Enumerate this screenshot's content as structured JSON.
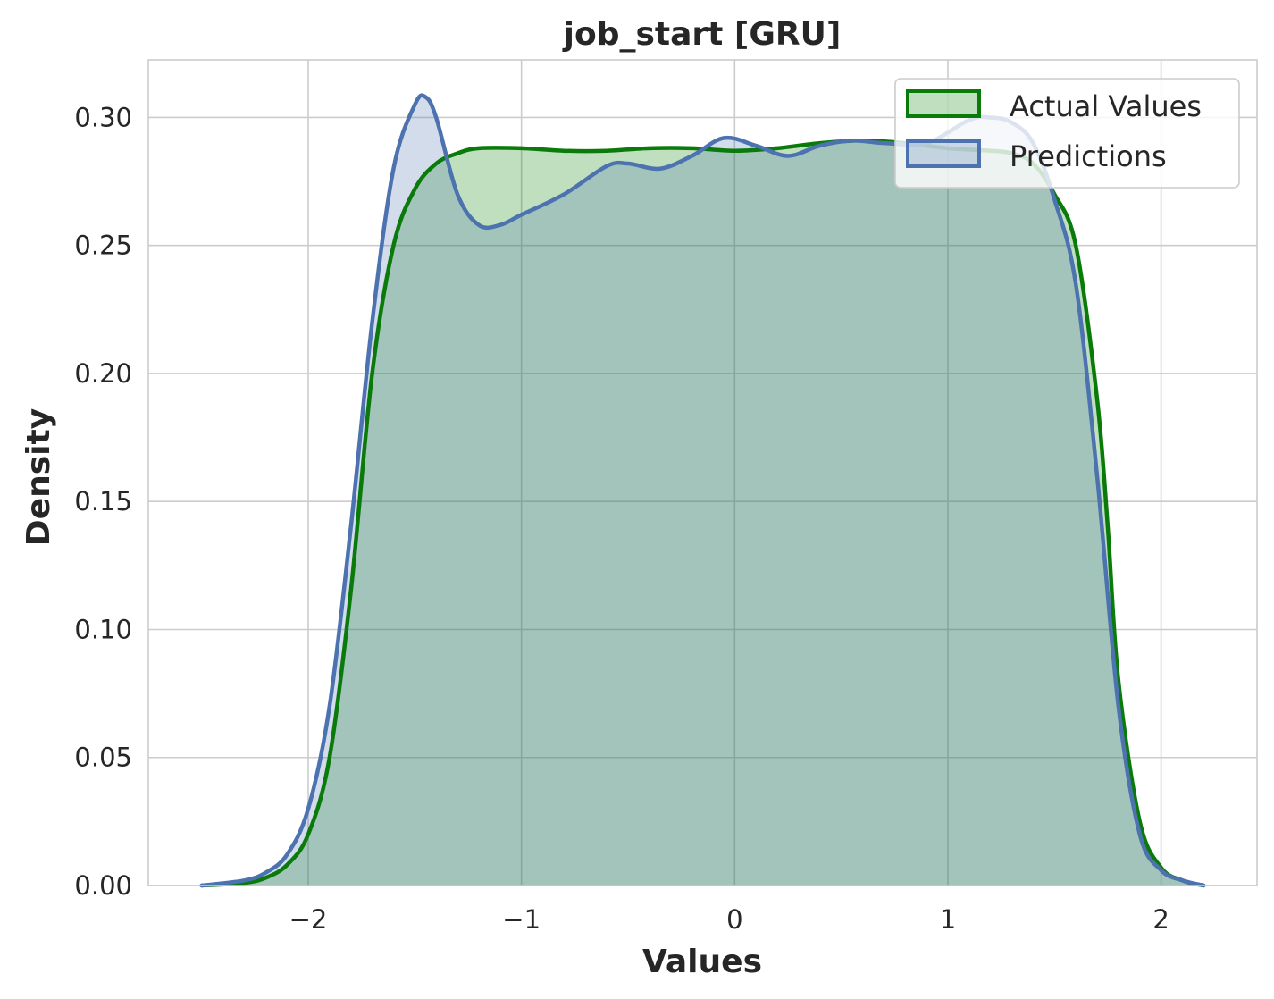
{
  "chart_data": {
    "type": "area",
    "title": "job_start [GRU]",
    "xlabel": "Values",
    "ylabel": "Density",
    "xlim": [
      -2.75,
      2.45
    ],
    "ylim": [
      0,
      0.3225
    ],
    "xticks": [
      -2,
      -1,
      0,
      1,
      2
    ],
    "xtick_labels": [
      "−2",
      "−1",
      "0",
      "1",
      "2"
    ],
    "yticks": [
      0,
      0.05,
      0.1,
      0.15,
      0.2,
      0.25,
      0.3
    ],
    "ytick_labels": [
      "0.00",
      "0.05",
      "0.10",
      "0.15",
      "0.20",
      "0.25",
      "0.30"
    ],
    "grid": true,
    "legend_position": "top-right",
    "series": [
      {
        "name": "Actual Values",
        "color": "#0a7a0a",
        "fill": "#008000",
        "fill_opacity": 0.25,
        "points": [
          [
            -2.5,
            0
          ],
          [
            -2.3,
            0.001
          ],
          [
            -2.2,
            0.003
          ],
          [
            -2.1,
            0.008
          ],
          [
            -2.0,
            0.02
          ],
          [
            -1.9,
            0.05
          ],
          [
            -1.8,
            0.115
          ],
          [
            -1.7,
            0.2
          ],
          [
            -1.6,
            0.25
          ],
          [
            -1.5,
            0.272
          ],
          [
            -1.4,
            0.282
          ],
          [
            -1.3,
            0.286
          ],
          [
            -1.2,
            0.288
          ],
          [
            -1.0,
            0.288
          ],
          [
            -0.8,
            0.287
          ],
          [
            -0.6,
            0.287
          ],
          [
            -0.4,
            0.288
          ],
          [
            -0.2,
            0.288
          ],
          [
            0.0,
            0.287
          ],
          [
            0.2,
            0.288
          ],
          [
            0.4,
            0.29
          ],
          [
            0.6,
            0.291
          ],
          [
            0.8,
            0.29
          ],
          [
            1.0,
            0.288
          ],
          [
            1.2,
            0.287
          ],
          [
            1.3,
            0.286
          ],
          [
            1.4,
            0.282
          ],
          [
            1.5,
            0.27
          ],
          [
            1.6,
            0.25
          ],
          [
            1.7,
            0.19
          ],
          [
            1.75,
            0.14
          ],
          [
            1.8,
            0.08
          ],
          [
            1.9,
            0.025
          ],
          [
            2.0,
            0.007
          ],
          [
            2.1,
            0.002
          ],
          [
            2.2,
            0
          ]
        ]
      },
      {
        "name": "Predictions",
        "color": "#4c72b0",
        "fill": "#4c72b0",
        "fill_opacity": 0.25,
        "points": [
          [
            -2.5,
            0
          ],
          [
            -2.3,
            0.002
          ],
          [
            -2.2,
            0.005
          ],
          [
            -2.1,
            0.012
          ],
          [
            -2.0,
            0.03
          ],
          [
            -1.9,
            0.07
          ],
          [
            -1.8,
            0.14
          ],
          [
            -1.7,
            0.22
          ],
          [
            -1.6,
            0.28
          ],
          [
            -1.5,
            0.305
          ],
          [
            -1.45,
            0.308
          ],
          [
            -1.4,
            0.3
          ],
          [
            -1.3,
            0.27
          ],
          [
            -1.2,
            0.258
          ],
          [
            -1.1,
            0.258
          ],
          [
            -1.0,
            0.262
          ],
          [
            -0.8,
            0.27
          ],
          [
            -0.6,
            0.281
          ],
          [
            -0.5,
            0.282
          ],
          [
            -0.35,
            0.28
          ],
          [
            -0.2,
            0.285
          ],
          [
            -0.05,
            0.292
          ],
          [
            0.1,
            0.289
          ],
          [
            0.25,
            0.285
          ],
          [
            0.4,
            0.289
          ],
          [
            0.55,
            0.291
          ],
          [
            0.7,
            0.29
          ],
          [
            0.9,
            0.29
          ],
          [
            1.1,
            0.299
          ],
          [
            1.2,
            0.3
          ],
          [
            1.3,
            0.298
          ],
          [
            1.4,
            0.29
          ],
          [
            1.5,
            0.268
          ],
          [
            1.6,
            0.235
          ],
          [
            1.7,
            0.16
          ],
          [
            1.8,
            0.07
          ],
          [
            1.9,
            0.02
          ],
          [
            2.0,
            0.006
          ],
          [
            2.1,
            0.002
          ],
          [
            2.2,
            0
          ]
        ]
      }
    ]
  }
}
